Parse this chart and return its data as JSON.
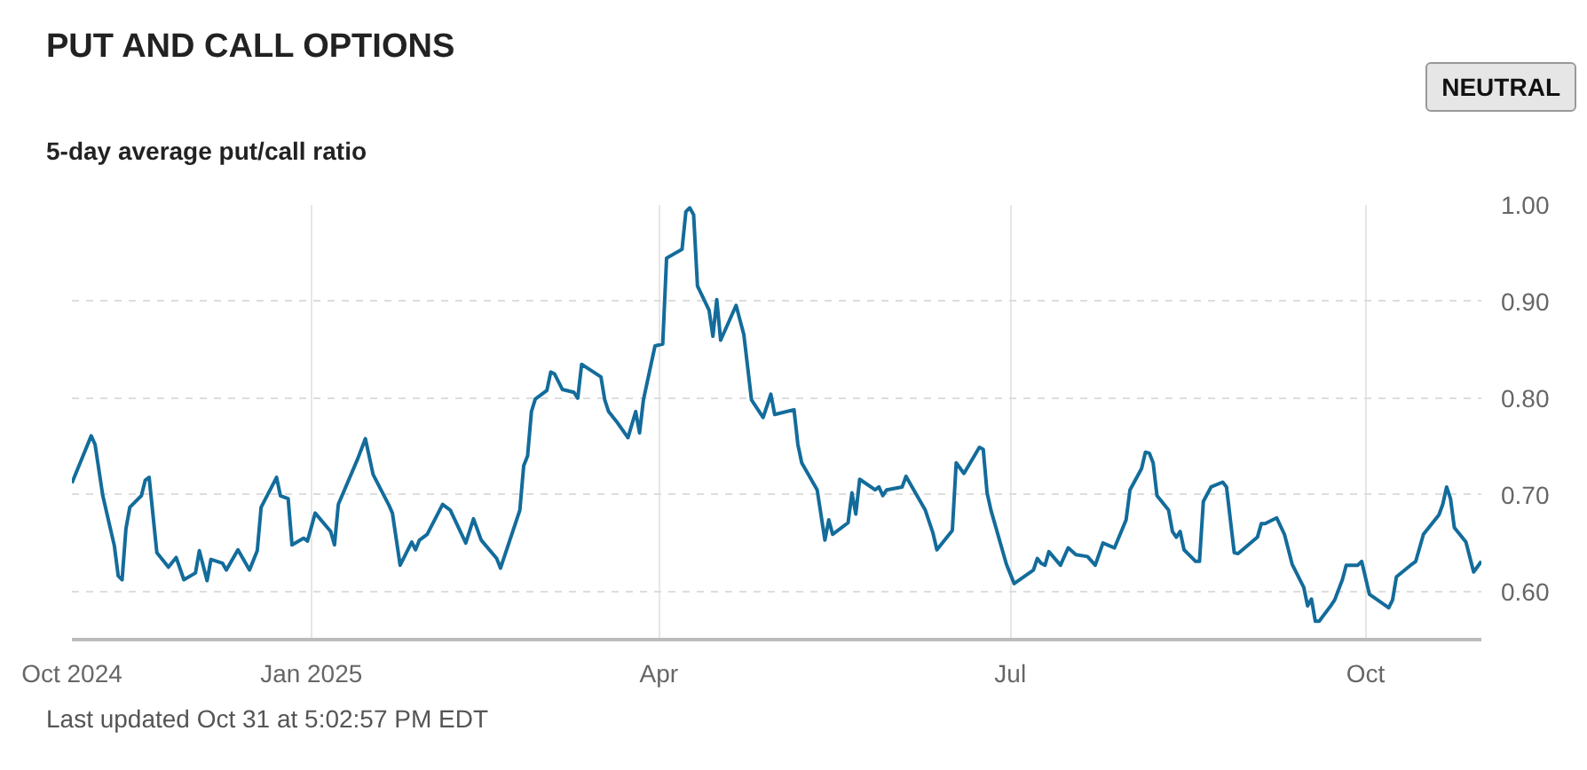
{
  "chart_data": {
    "type": "line",
    "title": "PUT AND CALL OPTIONS",
    "subtitle": "5-day average put/call ratio",
    "annotations": [
      "NEUTRAL",
      "Last updated Oct 31 at 5:02:57 PM EDT"
    ],
    "x": [
      "2024-10-31",
      "2024-11-05",
      "2024-11-06",
      "2024-11-08",
      "2024-11-11",
      "2024-11-12",
      "2024-11-13",
      "2024-11-14",
      "2024-11-15",
      "2024-11-18",
      "2024-11-19",
      "2024-11-20",
      "2024-11-22",
      "2024-11-25",
      "2024-11-27",
      "2024-11-29",
      "2024-12-02",
      "2024-12-03",
      "2024-12-05",
      "2024-12-06",
      "2024-12-09",
      "2024-12-10",
      "2024-12-13",
      "2024-12-16",
      "2024-12-18",
      "2024-12-19",
      "2024-12-23",
      "2024-12-24",
      "2024-12-26",
      "2024-12-27",
      "2024-12-30",
      "2024-12-31",
      "2025-01-02",
      "2025-01-06",
      "2025-01-07",
      "2025-01-08",
      "2025-01-13",
      "2025-01-15",
      "2025-01-17",
      "2025-01-21",
      "2025-01-22",
      "2025-01-24",
      "2025-01-27",
      "2025-01-28",
      "2025-01-29",
      "2025-01-31",
      "2025-02-04",
      "2025-02-06",
      "2025-02-10",
      "2025-02-12",
      "2025-02-14",
      "2025-02-18",
      "2025-02-19",
      "2025-02-24",
      "2025-02-25",
      "2025-02-26",
      "2025-02-27",
      "2025-02-28",
      "2025-03-03",
      "2025-03-04",
      "2025-03-05",
      "2025-03-07",
      "2025-03-10",
      "2025-03-11",
      "2025-03-12",
      "2025-03-17",
      "2025-03-18",
      "2025-03-19",
      "2025-03-21",
      "2025-03-24",
      "2025-03-26",
      "2025-03-27",
      "2025-03-28",
      "2025-03-31",
      "2025-04-02",
      "2025-04-03",
      "2025-04-07",
      "2025-04-08",
      "2025-04-09",
      "2025-04-10",
      "2025-04-11",
      "2025-04-14",
      "2025-04-15",
      "2025-04-16",
      "2025-04-17",
      "2025-04-21",
      "2025-04-23",
      "2025-04-25",
      "2025-04-28",
      "2025-04-30",
      "2025-05-01",
      "2025-05-06",
      "2025-05-07",
      "2025-05-08",
      "2025-05-12",
      "2025-05-14",
      "2025-05-15",
      "2025-05-16",
      "2025-05-20",
      "2025-05-21",
      "2025-05-22",
      "2025-05-23",
      "2025-05-27",
      "2025-05-28",
      "2025-05-29",
      "2025-05-30",
      "2025-06-03",
      "2025-06-04",
      "2025-06-09",
      "2025-06-11",
      "2025-06-12",
      "2025-06-16",
      "2025-06-17",
      "2025-06-19",
      "2025-06-23",
      "2025-06-24",
      "2025-06-25",
      "2025-06-26",
      "2025-06-30",
      "2025-07-02",
      "2025-07-07",
      "2025-07-08",
      "2025-07-09",
      "2025-07-10",
      "2025-07-11",
      "2025-07-14",
      "2025-07-16",
      "2025-07-18",
      "2025-07-21",
      "2025-07-23",
      "2025-07-25",
      "2025-07-28",
      "2025-07-31",
      "2025-08-01",
      "2025-08-04",
      "2025-08-05",
      "2025-08-06",
      "2025-08-07",
      "2025-08-08",
      "2025-08-11",
      "2025-08-12",
      "2025-08-13",
      "2025-08-14",
      "2025-08-15",
      "2025-08-18",
      "2025-08-19",
      "2025-08-20",
      "2025-08-22",
      "2025-08-25",
      "2025-08-26",
      "2025-08-28",
      "2025-08-29",
      "2025-09-03",
      "2025-09-04",
      "2025-09-05",
      "2025-09-08",
      "2025-09-10",
      "2025-09-12",
      "2025-09-15",
      "2025-09-16",
      "2025-09-17",
      "2025-09-18",
      "2025-09-19",
      "2025-09-22",
      "2025-09-23",
      "2025-09-25",
      "2025-09-26",
      "2025-09-29",
      "2025-09-30",
      "2025-10-02",
      "2025-10-07",
      "2025-10-08",
      "2025-10-09",
      "2025-10-13",
      "2025-10-14",
      "2025-10-16",
      "2025-10-20",
      "2025-10-21",
      "2025-10-22",
      "2025-10-23",
      "2025-10-24",
      "2025-10-27",
      "2025-10-29",
      "2025-10-31"
    ],
    "series": [
      {
        "color": "#136c9b",
        "values": [
          0.712,
          0.761,
          0.752,
          0.699,
          0.647,
          0.616,
          0.612,
          0.665,
          0.687,
          0.699,
          0.715,
          0.718,
          0.64,
          0.625,
          0.635,
          0.612,
          0.619,
          0.642,
          0.611,
          0.633,
          0.629,
          0.622,
          0.643,
          0.622,
          0.642,
          0.687,
          0.718,
          0.699,
          0.696,
          0.648,
          0.655,
          0.652,
          0.681,
          0.662,
          0.648,
          0.69,
          0.737,
          0.758,
          0.721,
          0.69,
          0.681,
          0.627,
          0.651,
          0.643,
          0.653,
          0.659,
          0.69,
          0.684,
          0.65,
          0.675,
          0.653,
          0.634,
          0.624,
          0.684,
          0.73,
          0.74,
          0.786,
          0.799,
          0.808,
          0.827,
          0.825,
          0.809,
          0.806,
          0.8,
          0.835,
          0.822,
          0.798,
          0.786,
          0.776,
          0.759,
          0.786,
          0.764,
          0.798,
          0.854,
          0.856,
          0.945,
          0.954,
          0.993,
          0.997,
          0.99,
          0.916,
          0.891,
          0.864,
          0.902,
          0.86,
          0.896,
          0.866,
          0.798,
          0.78,
          0.804,
          0.783,
          0.788,
          0.752,
          0.733,
          0.705,
          0.653,
          0.674,
          0.659,
          0.671,
          0.702,
          0.68,
          0.716,
          0.705,
          0.708,
          0.699,
          0.705,
          0.708,
          0.719,
          0.684,
          0.66,
          0.643,
          0.663,
          0.733,
          0.722,
          0.749,
          0.747,
          0.702,
          0.684,
          0.628,
          0.608,
          0.622,
          0.634,
          0.629,
          0.627,
          0.641,
          0.627,
          0.645,
          0.638,
          0.636,
          0.627,
          0.65,
          0.645,
          0.674,
          0.705,
          0.727,
          0.744,
          0.743,
          0.733,
          0.699,
          0.684,
          0.662,
          0.656,
          0.662,
          0.643,
          0.631,
          0.631,
          0.693,
          0.708,
          0.713,
          0.708,
          0.64,
          0.639,
          0.656,
          0.67,
          0.67,
          0.676,
          0.659,
          0.628,
          0.604,
          0.585,
          0.592,
          0.569,
          0.569,
          0.585,
          0.591,
          0.612,
          0.627,
          0.627,
          0.631,
          0.597,
          0.583,
          0.591,
          0.615,
          0.628,
          0.631,
          0.659,
          0.679,
          0.69,
          0.708,
          0.696,
          0.666,
          0.651,
          0.62,
          0.631
        ]
      }
    ],
    "xlim": [
      "2024-10-31",
      "2025-10-31"
    ],
    "xticks": [
      {
        "value": "2024-10-31",
        "label": "Oct 2024"
      },
      {
        "value": "2025-01-01",
        "label": "Jan 2025"
      },
      {
        "value": "2025-04-01",
        "label": "Apr"
      },
      {
        "value": "2025-07-01",
        "label": "Jul"
      },
      {
        "value": "2025-10-01",
        "label": "Oct"
      }
    ],
    "ylim": [
      0.55,
      1.0
    ],
    "yticks": [
      {
        "value": 0.6,
        "label": "0.60"
      },
      {
        "value": 0.7,
        "label": "0.70"
      },
      {
        "value": 0.8,
        "label": "0.80"
      },
      {
        "value": 0.9,
        "label": "0.90"
      },
      {
        "value": 1.0,
        "label": "1.00"
      }
    ],
    "grid": true,
    "marker": "none",
    "line_style": "solid"
  }
}
